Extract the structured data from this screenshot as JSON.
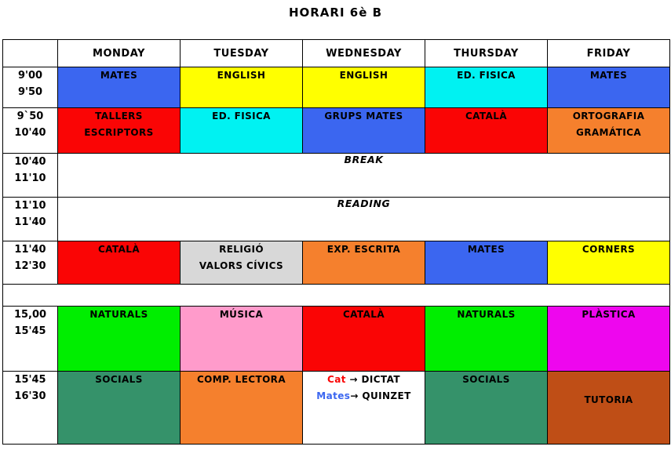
{
  "title": "HORARI 6è B",
  "palette": {
    "blue": "#3B66F0",
    "yellow": "#FFFF00",
    "cyan": "#00F2F2",
    "red": "#FA0505",
    "orange": "#F5802D",
    "gray": "#D8D8D8",
    "green": "#00EE00",
    "pink": "#FF9BCB",
    "magenta": "#EE06EE",
    "seagreen": "#35926A",
    "brown": "#BF4E16",
    "white": "#FFFFFF",
    "text_black": "#000000",
    "text_red": "#FA0505",
    "text_blue": "#3B66F0"
  },
  "header": {
    "time_col": "",
    "days": [
      "MONDAY",
      "TUESDAY",
      "WEDNESDAY",
      "THURSDAY",
      "FRIDAY"
    ]
  },
  "rows": [
    {
      "kind": "subjects",
      "time": [
        "9'00",
        "9'50"
      ],
      "cells": [
        {
          "lines": [
            "MATES"
          ],
          "bg": "blue"
        },
        {
          "lines": [
            "ENGLISH"
          ],
          "bg": "yellow"
        },
        {
          "lines": [
            "ENGLISH"
          ],
          "bg": "yellow"
        },
        {
          "lines": [
            "ED. FISICA"
          ],
          "bg": "cyan"
        },
        {
          "lines": [
            "MATES"
          ],
          "bg": "blue"
        }
      ]
    },
    {
      "kind": "subjects",
      "time": [
        "9`50",
        "10'40"
      ],
      "cells": [
        {
          "lines": [
            "TALLERS",
            "ESCRIPTORS"
          ],
          "bg": "red"
        },
        {
          "lines": [
            "ED. FISICA"
          ],
          "bg": "cyan"
        },
        {
          "lines": [
            "GRUPS MATES"
          ],
          "bg": "blue"
        },
        {
          "lines": [
            "CATALÀ"
          ],
          "bg": "red"
        },
        {
          "lines": [
            "ORTOGRAFIA",
            "GRAMÁTICA"
          ],
          "bg": "orange"
        }
      ]
    },
    {
      "kind": "merged",
      "time": [
        "10'40",
        "11'10"
      ],
      "label": "BREAK"
    },
    {
      "kind": "merged",
      "time": [
        "11'10",
        "11'40"
      ],
      "label": "READING"
    },
    {
      "kind": "subjects",
      "time": [
        "11'40",
        "12'30"
      ],
      "cells": [
        {
          "lines": [
            "CATALÀ"
          ],
          "bg": "red"
        },
        {
          "lines": [
            "RELIGIÓ",
            "VALORS CÍVICS"
          ],
          "bg": "gray"
        },
        {
          "lines": [
            "EXP. ESCRITA"
          ],
          "bg": "orange"
        },
        {
          "lines": [
            "MATES"
          ],
          "bg": "blue"
        },
        {
          "lines": [
            "CORNERS"
          ],
          "bg": "yellow"
        }
      ]
    },
    {
      "kind": "gap"
    },
    {
      "kind": "subjects",
      "time": [
        "15,00",
        "15'45"
      ],
      "cells": [
        {
          "lines": [
            "NATURALS"
          ],
          "bg": "green"
        },
        {
          "lines": [
            "MÚSICA"
          ],
          "bg": "pink"
        },
        {
          "lines": [
            "CATALÀ"
          ],
          "bg": "red"
        },
        {
          "lines": [
            "NATURALS"
          ],
          "bg": "green"
        },
        {
          "lines": [
            "PLÀSTICA"
          ],
          "bg": "magenta"
        }
      ]
    },
    {
      "kind": "subjects",
      "time": [
        "15'45",
        "16'30"
      ],
      "cells": [
        {
          "lines": [
            "SOCIALS"
          ],
          "bg": "seagreen"
        },
        {
          "lines": [
            "COMP. LECTORA"
          ],
          "bg": "orange"
        },
        {
          "lines": [
            [
              {
                "t": "Cat ",
                "c": "text_red"
              },
              {
                "t": "→ DICTAT",
                "c": "text_black"
              }
            ],
            [
              {
                "t": "Mates",
                "c": "text_blue"
              },
              {
                "t": "→ QUINZET",
                "c": "text_black"
              }
            ]
          ],
          "bg": "white"
        },
        {
          "lines": [
            "SOCIALS"
          ],
          "bg": "seagreen"
        },
        {
          "lines": [
            "TUTORIA"
          ],
          "bg": "brown",
          "pt": 26
        }
      ]
    }
  ]
}
